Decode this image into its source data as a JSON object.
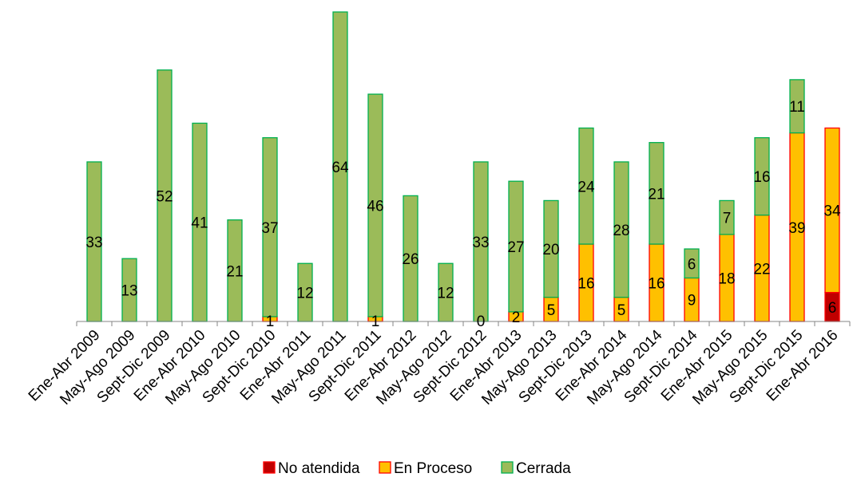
{
  "chart_data": {
    "type": "bar",
    "stacked": true,
    "categories": [
      "Ene-Abr 2009",
      "May-Ago 2009",
      "Sept-Dic 2009",
      "Ene-Abr 2010",
      "May-Ago 2010",
      "Sept-Dic 2010",
      "Ene-Abr 2011",
      "May-Ago 2011",
      "Sept-Dic 2011",
      "Ene-Abr 2012",
      "May-Ago 2012",
      "Sept-Dic 2012",
      "Ene-Abr 2013",
      "May-Ago 2013",
      "Sept-Dic 2013",
      "Ene-Abr 2014",
      "May-Ago 2014",
      "Sept-Dic 2014",
      "Ene-Abr 2015",
      "May-Ago 2015",
      "Sept-Dic 2015",
      "Ene-Abr 2016"
    ],
    "series": [
      {
        "name": "No atendida",
        "fill": "#C00000",
        "stroke": "#FF0000",
        "values": [
          0,
          0,
          0,
          0,
          0,
          0,
          0,
          0,
          0,
          0,
          0,
          0,
          0,
          0,
          0,
          0,
          0,
          0,
          0,
          0,
          0,
          6
        ]
      },
      {
        "name": "En Proceso",
        "fill": "#FFC000",
        "stroke": "#FF0000",
        "values": [
          0,
          0,
          0,
          0,
          0,
          1,
          0,
          0,
          1,
          0,
          0,
          0,
          2,
          5,
          16,
          5,
          16,
          9,
          18,
          22,
          39,
          34
        ]
      },
      {
        "name": "Cerrada",
        "fill": "#9BBB59",
        "stroke": "#00B050",
        "values": [
          33,
          13,
          52,
          41,
          21,
          37,
          12,
          64,
          46,
          26,
          12,
          33,
          27,
          20,
          24,
          28,
          21,
          6,
          7,
          16,
          11,
          0
        ]
      }
    ],
    "data_labels": [
      {
        "category": "Ene-Abr 2009",
        "series": "Cerrada",
        "text": "33"
      },
      {
        "category": "May-Ago 2009",
        "series": "Cerrada",
        "text": "13"
      },
      {
        "category": "Sept-Dic 2009",
        "series": "Cerrada",
        "text": "52"
      },
      {
        "category": "Ene-Abr 2010",
        "series": "Cerrada",
        "text": "41"
      },
      {
        "category": "May-Ago 2010",
        "series": "Cerrada",
        "text": "21"
      },
      {
        "category": "Sept-Dic 2010",
        "series": "En Proceso",
        "text": "1"
      },
      {
        "category": "Sept-Dic 2010",
        "series": "Cerrada",
        "text": "37"
      },
      {
        "category": "Ene-Abr 2011",
        "series": "Cerrada",
        "text": "12"
      },
      {
        "category": "May-Ago 2011",
        "series": "Cerrada",
        "text": "64"
      },
      {
        "category": "Sept-Dic 2011",
        "series": "En Proceso",
        "text": "1"
      },
      {
        "category": "Sept-Dic 2011",
        "series": "Cerrada",
        "text": "46"
      },
      {
        "category": "Ene-Abr 2012",
        "series": "Cerrada",
        "text": "26"
      },
      {
        "category": "May-Ago 2012",
        "series": "Cerrada",
        "text": "12"
      },
      {
        "category": "Sept-Dic 2012",
        "series": "En Proceso",
        "text": "0"
      },
      {
        "category": "Sept-Dic 2012",
        "series": "Cerrada",
        "text": "33"
      },
      {
        "category": "Ene-Abr 2013",
        "series": "En Proceso",
        "text": "2"
      },
      {
        "category": "Ene-Abr 2013",
        "series": "Cerrada",
        "text": "27"
      },
      {
        "category": "May-Ago 2013",
        "series": "En Proceso",
        "text": "5"
      },
      {
        "category": "May-Ago 2013",
        "series": "Cerrada",
        "text": "20"
      },
      {
        "category": "Sept-Dic 2013",
        "series": "En Proceso",
        "text": "16"
      },
      {
        "category": "Sept-Dic 2013",
        "series": "Cerrada",
        "text": "24"
      },
      {
        "category": "Ene-Abr 2014",
        "series": "En Proceso",
        "text": "5"
      },
      {
        "category": "Ene-Abr 2014",
        "series": "Cerrada",
        "text": "28"
      },
      {
        "category": "May-Ago 2014",
        "series": "En Proceso",
        "text": "16"
      },
      {
        "category": "May-Ago 2014",
        "series": "Cerrada",
        "text": "21"
      },
      {
        "category": "Sept-Dic 2014",
        "series": "En Proceso",
        "text": "9"
      },
      {
        "category": "Sept-Dic 2014",
        "series": "Cerrada",
        "text": "6"
      },
      {
        "category": "Ene-Abr 2015",
        "series": "En Proceso",
        "text": "18"
      },
      {
        "category": "Ene-Abr 2015",
        "series": "Cerrada",
        "text": "7"
      },
      {
        "category": "May-Ago 2015",
        "series": "En Proceso",
        "text": "22"
      },
      {
        "category": "May-Ago 2015",
        "series": "Cerrada",
        "text": "16"
      },
      {
        "category": "Sept-Dic 2015",
        "series": "En Proceso",
        "text": "39"
      },
      {
        "category": "Sept-Dic 2015",
        "series": "Cerrada",
        "text": "11"
      },
      {
        "category": "Ene-Abr 2016",
        "series": "No atendida",
        "text": "6"
      },
      {
        "category": "Ene-Abr 2016",
        "series": "En Proceso",
        "text": "34"
      }
    ],
    "ylim": [
      0,
      64
    ],
    "grid": false,
    "legend_position": "bottom",
    "legend": [
      "No atendida",
      "En Proceso",
      "Cerrada"
    ]
  }
}
